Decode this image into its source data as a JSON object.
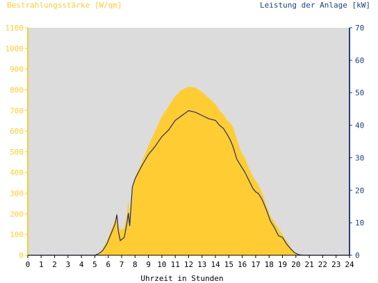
{
  "chart_data": {
    "type": "area",
    "title": "",
    "left_axis_label": "Bestrahlungsstärke [W/qm]",
    "right_axis_label": "Leistung der Anlage [kW]",
    "xlabel": "Uhrzeit in Stunden",
    "xlim": [
      0,
      24
    ],
    "x_ticks": [
      "0",
      "1",
      "2",
      "3",
      "4",
      "5",
      "6",
      "7",
      "8",
      "9",
      "10",
      "11",
      "12",
      "13",
      "14",
      "15",
      "16",
      "17",
      "18",
      "19",
      "20",
      "21",
      "22",
      "23",
      "24"
    ],
    "y_left_lim": [
      0,
      1100
    ],
    "y_left_ticks": [
      "0",
      "100",
      "200",
      "300",
      "400",
      "500",
      "600",
      "700",
      "800",
      "900",
      "1000",
      "1100"
    ],
    "y_right_lim": [
      0,
      70
    ],
    "y_right_ticks": [
      "0",
      "10",
      "20",
      "30",
      "40",
      "50",
      "60",
      "70"
    ],
    "grid": false,
    "colors": {
      "irradiance": "#ffcc33",
      "power": "#1f2f6b",
      "plot_background": "#dcdcdc",
      "left_axis": "#ffcc33",
      "right_axis": "#1f3f7f"
    },
    "series": [
      {
        "axis": "left",
        "style": "area",
        "x": [
          0,
          5,
          5.3,
          5.6,
          5.9,
          6.2,
          6.5,
          6.65,
          6.75,
          6.9,
          7.2,
          7.4,
          7.5,
          7.6,
          7.7,
          7.8,
          8.0,
          8.5,
          9.0,
          9.5,
          10.0,
          10.5,
          11.0,
          11.5,
          12.0,
          12.5,
          13.0,
          13.5,
          14.0,
          14.3,
          14.6,
          14.9,
          15.1,
          15.3,
          15.6,
          15.9,
          16.2,
          16.5,
          16.8,
          17.0,
          17.2,
          17.5,
          17.8,
          18.1,
          18.4,
          18.7,
          19.0,
          19.3,
          19.6,
          19.9,
          20.2,
          20.5,
          24
        ],
        "y": [
          0,
          0,
          10,
          30,
          70,
          120,
          170,
          210,
          150,
          120,
          130,
          200,
          270,
          190,
          260,
          330,
          380,
          450,
          530,
          600,
          670,
          720,
          770,
          800,
          815,
          810,
          790,
          760,
          730,
          700,
          680,
          650,
          640,
          620,
          560,
          500,
          470,
          420,
          380,
          360,
          340,
          300,
          240,
          190,
          160,
          130,
          100,
          70,
          40,
          15,
          3,
          0,
          0
        ]
      },
      {
        "axis": "right",
        "style": "line",
        "x": [
          0,
          5,
          5.3,
          5.6,
          5.9,
          6.2,
          6.5,
          6.65,
          6.75,
          6.9,
          7.2,
          7.4,
          7.5,
          7.6,
          7.7,
          7.8,
          8.0,
          8.5,
          9.0,
          9.5,
          10.0,
          10.5,
          11.0,
          11.5,
          12.0,
          12.5,
          13.0,
          13.5,
          14.0,
          14.3,
          14.6,
          14.9,
          15.1,
          15.3,
          15.6,
          15.9,
          16.2,
          16.5,
          16.8,
          17.0,
          17.2,
          17.5,
          17.8,
          18.1,
          18.4,
          18.7,
          19.0,
          19.3,
          19.6,
          19.9,
          20.2,
          20.5,
          24
        ],
        "y": [
          0,
          0,
          0.5,
          1.5,
          3.5,
          6.5,
          9.5,
          12.5,
          7.5,
          4.5,
          5.5,
          10.0,
          13.0,
          9.0,
          15.0,
          21.0,
          23.5,
          27.5,
          31.0,
          33.5,
          36.5,
          38.5,
          41.5,
          43.0,
          44.5,
          44.0,
          43.0,
          42.0,
          41.5,
          40.0,
          39.0,
          37.0,
          35.5,
          33.5,
          29.5,
          27.5,
          25.5,
          23.0,
          20.5,
          19.5,
          19.0,
          17.0,
          14.0,
          10.5,
          8.5,
          6.0,
          5.5,
          3.5,
          2.0,
          0.8,
          0.2,
          0,
          0
        ]
      }
    ]
  }
}
